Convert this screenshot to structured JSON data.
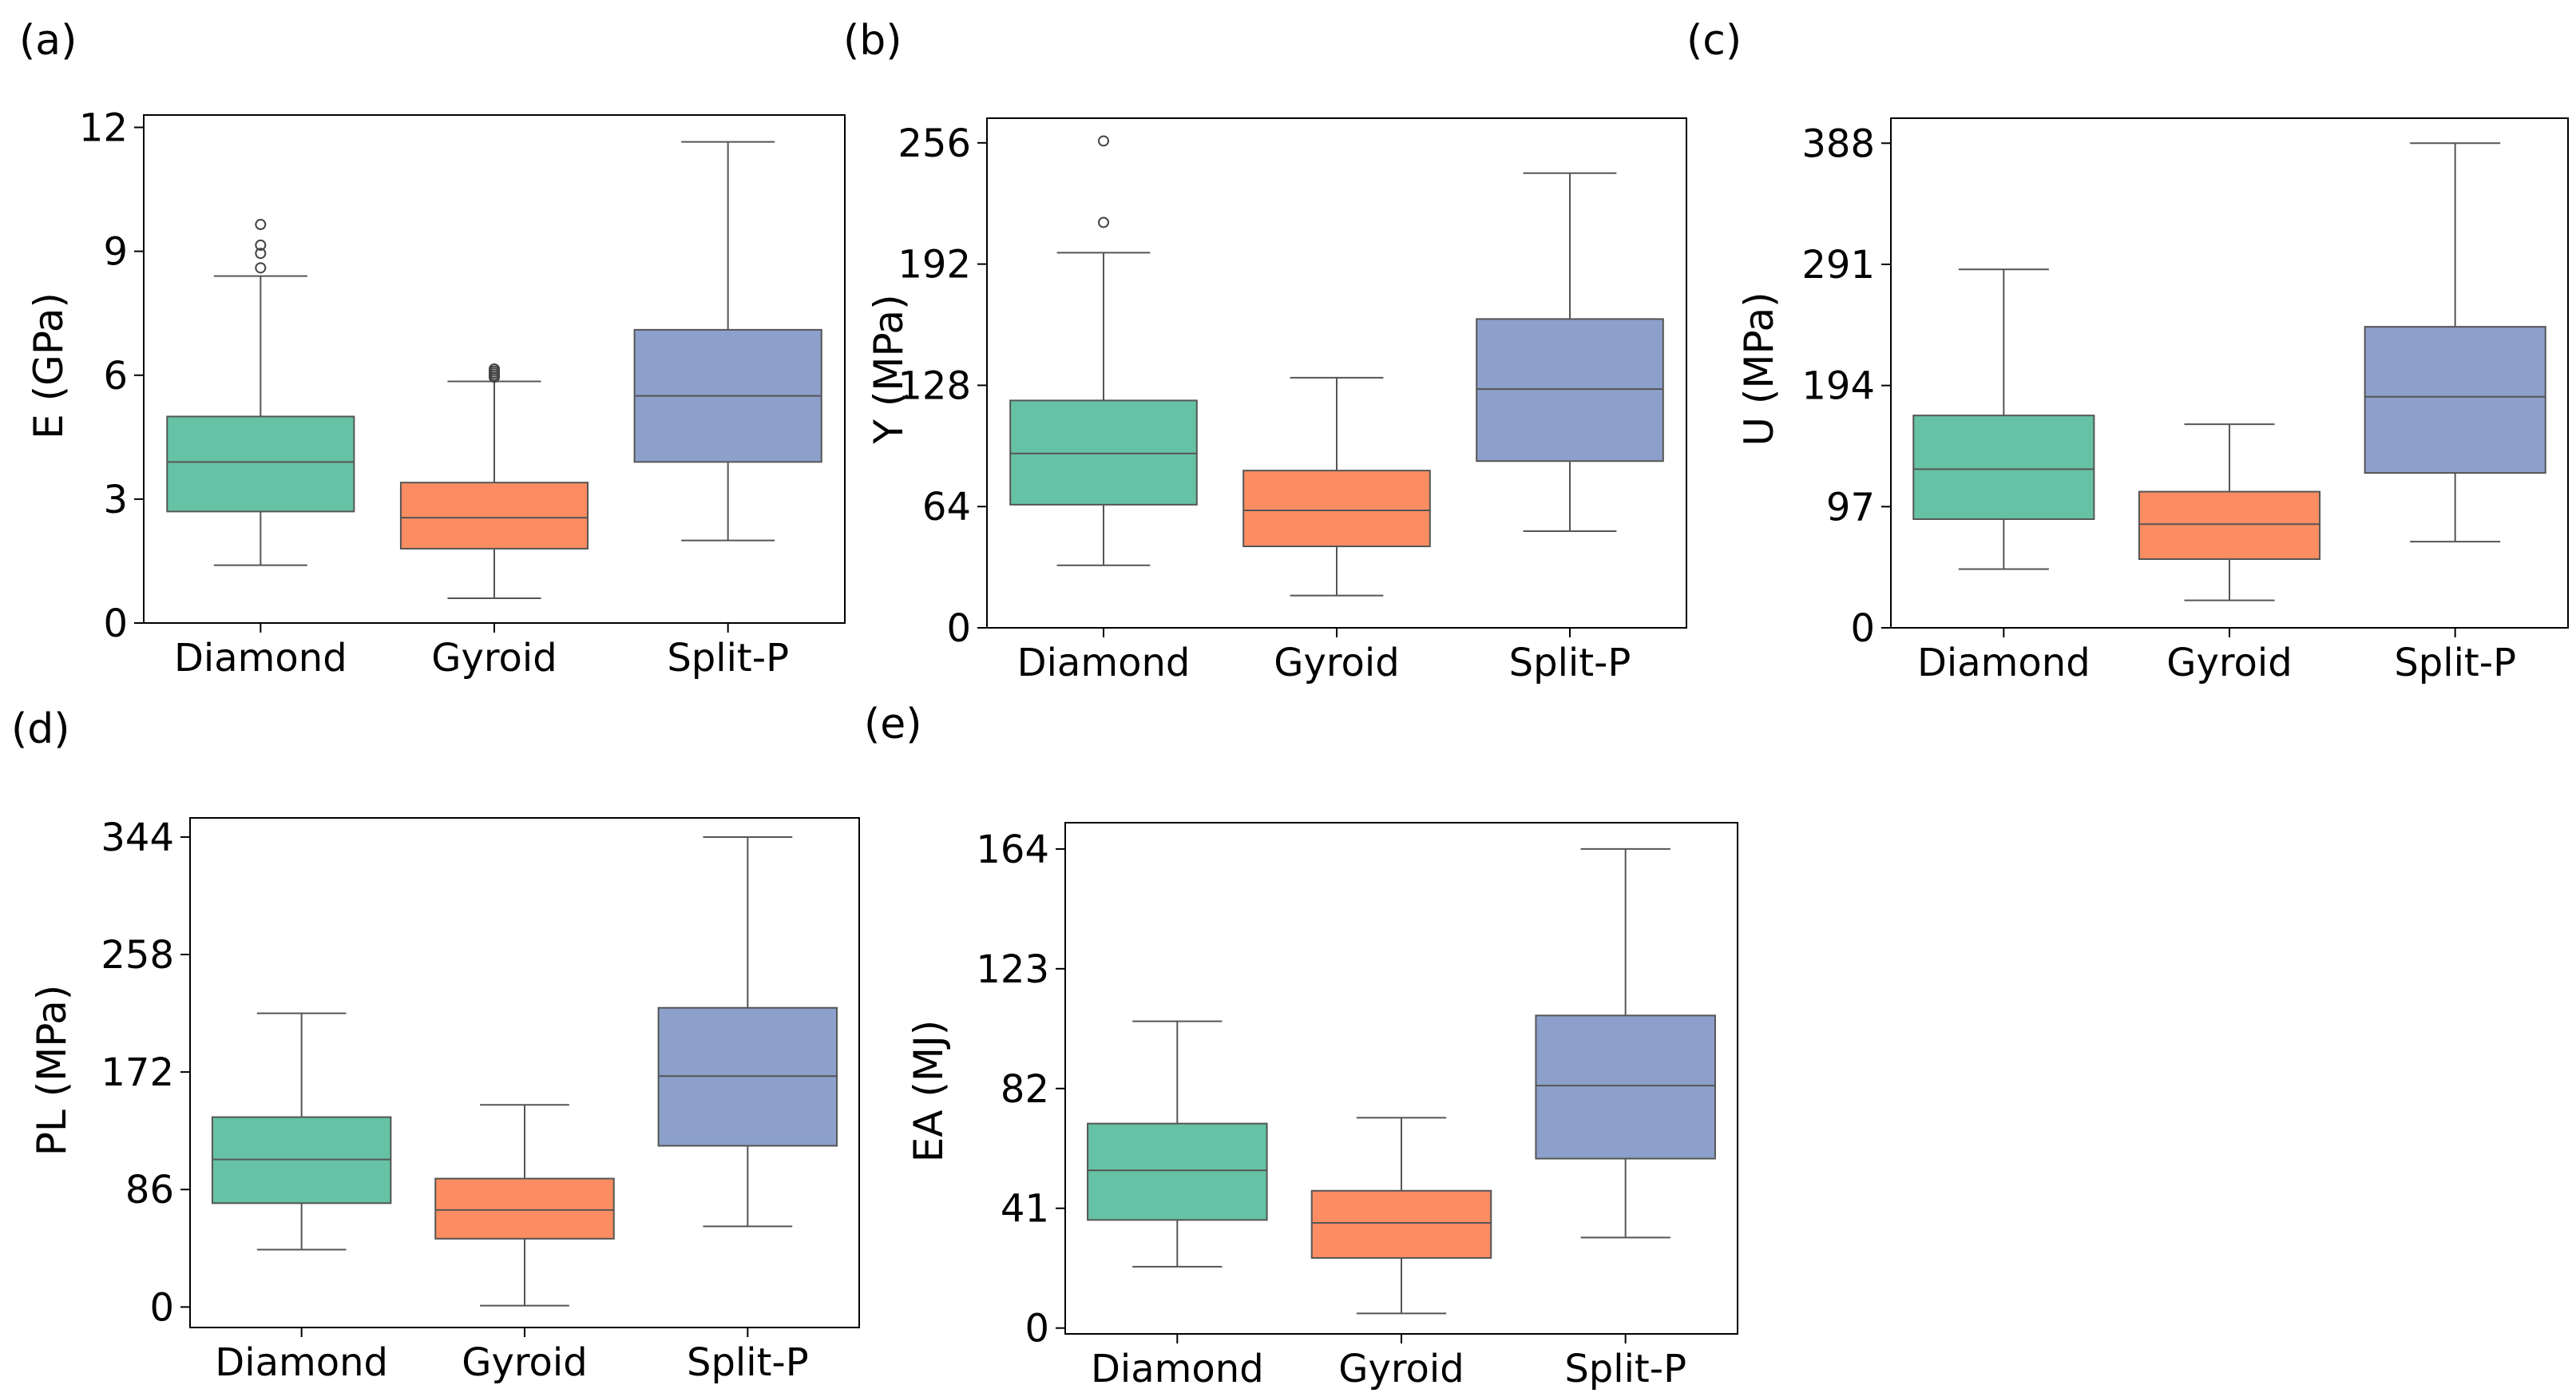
{
  "colors": {
    "Diamond": "#66c2a5",
    "Gyroid": "#fc8d62",
    "Split-P": "#8da0cb"
  },
  "chart_data": [
    {
      "type": "box",
      "panel_label": "(a)",
      "ylabel": "E (GPa)",
      "categories": [
        "Diamond",
        "Gyroid",
        "Split-P"
      ],
      "yticks": [
        0,
        3,
        6,
        9,
        12
      ],
      "ytick_labels": [
        "0",
        "3",
        "6",
        "9",
        "12"
      ],
      "ylim": [
        0,
        12.3
      ],
      "boxes": [
        {
          "category": "Diamond",
          "q1": 2.7,
          "median": 3.9,
          "q3": 5.0,
          "whisker_low": 1.4,
          "whisker_high": 8.4,
          "outliers": [
            8.6,
            8.95,
            9.15,
            9.65
          ]
        },
        {
          "category": "Gyroid",
          "q1": 1.8,
          "median": 2.55,
          "q3": 3.4,
          "whisker_low": 0.6,
          "whisker_high": 5.85,
          "outliers": [
            5.95,
            6.0,
            6.05,
            6.1,
            6.15
          ]
        },
        {
          "category": "Split-P",
          "q1": 3.9,
          "median": 5.5,
          "q3": 7.1,
          "whisker_low": 2.0,
          "whisker_high": 11.65,
          "outliers": []
        }
      ]
    },
    {
      "type": "box",
      "panel_label": "(b)",
      "ylabel": "Y (MPa)",
      "categories": [
        "Diamond",
        "Gyroid",
        "Split-P"
      ],
      "yticks": [
        0,
        64,
        128,
        192,
        256
      ],
      "ytick_labels": [
        "0",
        "64",
        "128",
        "192",
        "256"
      ],
      "ylim": [
        0,
        269
      ],
      "boxes": [
        {
          "category": "Diamond",
          "q1": 65,
          "median": 92,
          "q3": 120,
          "whisker_low": 33,
          "whisker_high": 198,
          "outliers": [
            214,
            257
          ]
        },
        {
          "category": "Gyroid",
          "q1": 43,
          "median": 62,
          "q3": 83,
          "whisker_low": 17,
          "whisker_high": 132,
          "outliers": []
        },
        {
          "category": "Split-P",
          "q1": 88,
          "median": 126,
          "q3": 163,
          "whisker_low": 51,
          "whisker_high": 240,
          "outliers": []
        }
      ]
    },
    {
      "type": "box",
      "panel_label": "(c)",
      "ylabel": "U (MPa)",
      "categories": [
        "Diamond",
        "Gyroid",
        "Split-P"
      ],
      "yticks": [
        0,
        97,
        194,
        291,
        388
      ],
      "ytick_labels": [
        "0",
        "97",
        "194",
        "291",
        "388"
      ],
      "ylim": [
        0,
        408
      ],
      "boxes": [
        {
          "category": "Diamond",
          "q1": 87,
          "median": 127,
          "q3": 170,
          "whisker_low": 47,
          "whisker_high": 287,
          "outliers": []
        },
        {
          "category": "Gyroid",
          "q1": 55,
          "median": 83,
          "q3": 109,
          "whisker_low": 22,
          "whisker_high": 163,
          "outliers": []
        },
        {
          "category": "Split-P",
          "q1": 124,
          "median": 185,
          "q3": 241,
          "whisker_low": 69,
          "whisker_high": 388,
          "outliers": []
        }
      ]
    },
    {
      "type": "box",
      "panel_label": "(d)",
      "ylabel": "PL (MPa)",
      "categories": [
        "Diamond",
        "Gyroid",
        "Split-P"
      ],
      "yticks": [
        0,
        86,
        172,
        258,
        344
      ],
      "ytick_labels": [
        "0",
        "86",
        "172",
        "258",
        "344"
      ],
      "ylim": [
        -15,
        358
      ],
      "boxes": [
        {
          "category": "Diamond",
          "q1": 76,
          "median": 108,
          "q3": 139,
          "whisker_low": 42,
          "whisker_high": 215,
          "outliers": []
        },
        {
          "category": "Gyroid",
          "q1": 50,
          "median": 71,
          "q3": 94,
          "whisker_low": 1,
          "whisker_high": 148,
          "outliers": []
        },
        {
          "category": "Split-P",
          "q1": 118,
          "median": 169,
          "q3": 219,
          "whisker_low": 59,
          "whisker_high": 344,
          "outliers": []
        }
      ]
    },
    {
      "type": "box",
      "panel_label": "(e)",
      "ylabel": "EA (MJ)",
      "categories": [
        "Diamond",
        "Gyroid",
        "Split-P"
      ],
      "yticks": [
        0,
        41,
        82,
        123,
        164
      ],
      "ytick_labels": [
        "0",
        "41",
        "82",
        "123",
        "164"
      ],
      "ylim": [
        -2,
        173
      ],
      "boxes": [
        {
          "category": "Diamond",
          "q1": 37,
          "median": 54,
          "q3": 70,
          "whisker_low": 21,
          "whisker_high": 105,
          "outliers": []
        },
        {
          "category": "Gyroid",
          "q1": 24,
          "median": 36,
          "q3": 47,
          "whisker_low": 5,
          "whisker_high": 72,
          "outliers": []
        },
        {
          "category": "Split-P",
          "q1": 58,
          "median": 83,
          "q3": 107,
          "whisker_low": 31,
          "whisker_high": 164,
          "outliers": []
        }
      ]
    }
  ]
}
